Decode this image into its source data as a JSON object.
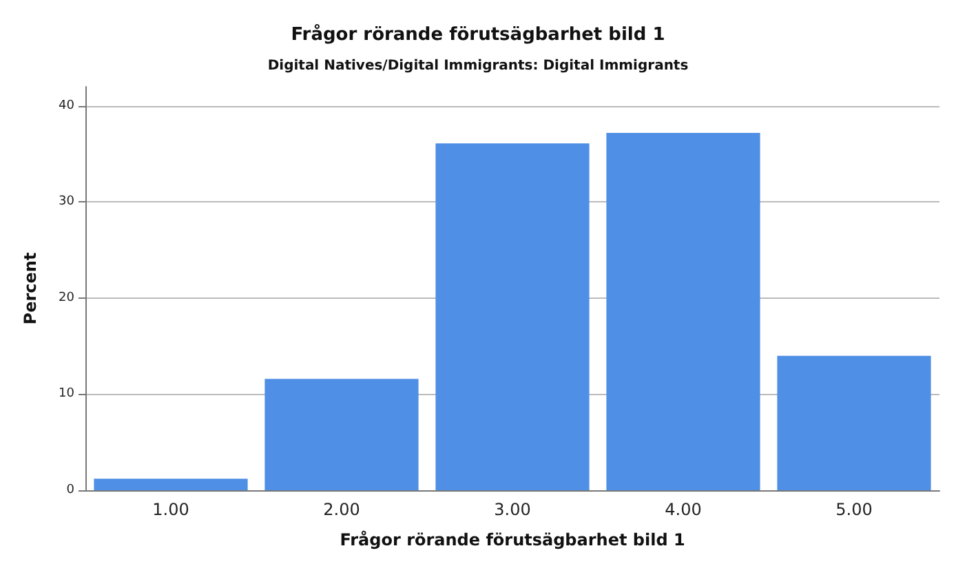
{
  "chart_data": {
    "type": "bar",
    "title": "Frågor rörande förutsägbarhet bild 1",
    "subtitle": "Digital Natives/Digital Immigrants: Digital Immigrants",
    "xlabel": "Frågor rörande förutsägbarhet bild 1",
    "ylabel": "Percent",
    "categories": [
      "1.00",
      "2.00",
      "3.00",
      "4.00",
      "5.00"
    ],
    "values": [
      1.2,
      11.6,
      36.1,
      37.2,
      14.0
    ],
    "color": "#4f8fe6",
    "ylim": [
      0,
      42
    ],
    "yticks": [
      0,
      10,
      20,
      30,
      40
    ],
    "grid": "y"
  }
}
